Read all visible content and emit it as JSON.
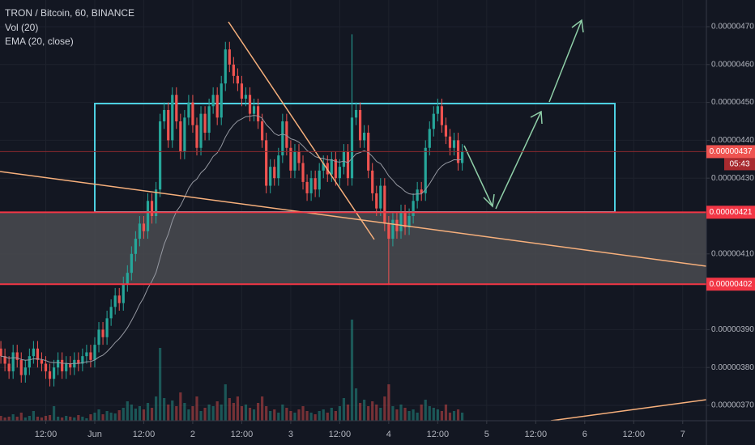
{
  "chart_data": {
    "type": "candlestick",
    "title": "TRON / Bitcoin, 60, BINANCE",
    "indicators": [
      "Vol (20)",
      "EMA (20, close)"
    ],
    "ema_period": 20,
    "up_color": "#26a69a",
    "down_color": "#ef5350",
    "ema_color": "#9598a1",
    "x": [
      1,
      2,
      3,
      4,
      5,
      6,
      7,
      8,
      9,
      10,
      11,
      12,
      13,
      14,
      15,
      16,
      17,
      18,
      19,
      20,
      21,
      22,
      23,
      24,
      25,
      26,
      27,
      28,
      29,
      30,
      31,
      32,
      33,
      34,
      35,
      36,
      37,
      38,
      39,
      40,
      41,
      42,
      43,
      44,
      45,
      46,
      47,
      48,
      49,
      50,
      51,
      52,
      53,
      54,
      55,
      56,
      57,
      58,
      59,
      60,
      61,
      62,
      63,
      64,
      65,
      66,
      67,
      68,
      69,
      70,
      71,
      72,
      73,
      74,
      75,
      76,
      77,
      78,
      79,
      80,
      81,
      82,
      83,
      84,
      85,
      86,
      87,
      88,
      89,
      90,
      91,
      92,
      93,
      94,
      95,
      96,
      97,
      98,
      99,
      100,
      101,
      102,
      103,
      104,
      105,
      106,
      107,
      108,
      109,
      110,
      111,
      112,
      113,
      114
    ],
    "open": [
      3.85e-07,
      3.83e-07,
      3.81e-07,
      3.79e-07,
      3.84e-07,
      3.82e-07,
      3.78e-07,
      3.8e-07,
      3.83e-07,
      3.85e-07,
      3.82e-07,
      3.81e-07,
      3.79e-07,
      3.77e-07,
      3.8e-07,
      3.82e-07,
      3.79e-07,
      3.81e-07,
      3.8e-07,
      3.82e-07,
      3.81e-07,
      3.83e-07,
      3.84e-07,
      3.82e-07,
      3.86e-07,
      3.9e-07,
      3.88e-07,
      3.93e-07,
      3.96e-07,
      3.99e-07,
      3.97e-07,
      4.02e-07,
      4.05e-07,
      4.1e-07,
      4.14e-07,
      4.18e-07,
      4.16e-07,
      4.24e-07,
      4.2e-07,
      4.27e-07,
      4.45e-07,
      4.48e-07,
      4.4e-07,
      4.52e-07,
      4.45e-07,
      4.37e-07,
      4.46e-07,
      4.5e-07,
      4.44e-07,
      4.38e-07,
      4.47e-07,
      4.42e-07,
      4.49e-07,
      4.52e-07,
      4.46e-07,
      4.55e-07,
      4.64e-07,
      4.6e-07,
      4.57e-07,
      4.55e-07,
      4.51e-07,
      4.52e-07,
      4.47e-07,
      4.49e-07,
      4.45e-07,
      4.4e-07,
      4.28e-07,
      4.33e-07,
      4.3e-07,
      4.36e-07,
      4.45e-07,
      4.38e-07,
      4.32e-07,
      4.37e-07,
      4.34e-07,
      4.29e-07,
      4.26e-07,
      4.3e-07,
      4.27e-07,
      4.32e-07,
      4.34e-07,
      4.31e-07,
      4.35e-07,
      4.3e-07,
      4.33e-07,
      4.37e-07,
      4.3e-07,
      4.46e-07,
      4.48e-07,
      4.4e-07,
      4.42e-07,
      4.32e-07,
      4.26e-07,
      4.22e-07,
      4.28e-07,
      4.18e-07,
      4.14e-07,
      4.19e-07,
      4.16e-07,
      4.21e-07,
      4.17e-07,
      4.2e-07,
      4.24e-07,
      4.27e-07,
      4.26e-07,
      4.38e-07,
      4.43e-07,
      4.47e-07,
      4.49e-07,
      4.44e-07,
      4.41e-07,
      4.38e-07,
      4.4e-07,
      4.34e-07
    ],
    "high": [
      3.87e-07,
      3.85e-07,
      3.83e-07,
      3.86e-07,
      3.86e-07,
      3.84e-07,
      3.82e-07,
      3.85e-07,
      3.87e-07,
      3.87e-07,
      3.84e-07,
      3.83e-07,
      3.81e-07,
      3.82e-07,
      3.84e-07,
      3.84e-07,
      3.83e-07,
      3.83e-07,
      3.84e-07,
      3.84e-07,
      3.85e-07,
      3.86e-07,
      3.86e-07,
      3.88e-07,
      3.92e-07,
      3.92e-07,
      3.95e-07,
      3.98e-07,
      4.01e-07,
      4.01e-07,
      4.04e-07,
      4.07e-07,
      4.12e-07,
      4.16e-07,
      4.2e-07,
      4.2e-07,
      4.26e-07,
      4.26e-07,
      4.29e-07,
      4.47e-07,
      4.5e-07,
      4.5e-07,
      4.54e-07,
      4.54e-07,
      4.47e-07,
      4.48e-07,
      4.52e-07,
      4.52e-07,
      4.46e-07,
      4.49e-07,
      4.49e-07,
      4.51e-07,
      4.54e-07,
      4.54e-07,
      4.57e-07,
      4.66e-07,
      4.66e-07,
      4.62e-07,
      4.59e-07,
      4.57e-07,
      4.54e-07,
      4.54e-07,
      4.51e-07,
      4.51e-07,
      4.47e-07,
      4.42e-07,
      4.35e-07,
      4.35e-07,
      4.38e-07,
      4.47e-07,
      4.47e-07,
      4.4e-07,
      4.39e-07,
      4.39e-07,
      4.36e-07,
      4.31e-07,
      4.32e-07,
      4.32e-07,
      4.34e-07,
      4.36e-07,
      4.36e-07,
      4.37e-07,
      4.37e-07,
      4.35e-07,
      4.39e-07,
      4.39e-07,
      4.68e-07,
      4.5e-07,
      4.5e-07,
      4.44e-07,
      4.44e-07,
      4.34e-07,
      4.28e-07,
      4.3e-07,
      4.3e-07,
      4.2e-07,
      4.21e-07,
      4.21e-07,
      4.23e-07,
      4.23e-07,
      4.22e-07,
      4.26e-07,
      4.29e-07,
      4.29e-07,
      4.4e-07,
      4.45e-07,
      4.49e-07,
      4.51e-07,
      4.51e-07,
      4.46e-07,
      4.43e-07,
      4.42e-07,
      4.42e-07,
      4.39e-07
    ],
    "low": [
      3.81e-07,
      3.79e-07,
      3.77e-07,
      3.77e-07,
      3.8e-07,
      3.76e-07,
      3.76e-07,
      3.78e-07,
      3.81e-07,
      3.8e-07,
      3.79e-07,
      3.77e-07,
      3.75e-07,
      3.75e-07,
      3.78e-07,
      3.77e-07,
      3.77e-07,
      3.78e-07,
      3.78e-07,
      3.79e-07,
      3.79e-07,
      3.81e-07,
      3.8e-07,
      3.8e-07,
      3.84e-07,
      3.86e-07,
      3.86e-07,
      3.91e-07,
      3.94e-07,
      3.95e-07,
      3.95e-07,
      4e-07,
      4.03e-07,
      4.08e-07,
      4.12e-07,
      4.14e-07,
      4.14e-07,
      4.18e-07,
      4.18e-07,
      4.25e-07,
      4.43e-07,
      4.38e-07,
      4.38e-07,
      4.43e-07,
      4.35e-07,
      4.35e-07,
      4.44e-07,
      4.42e-07,
      4.36e-07,
      4.36e-07,
      4.4e-07,
      4.4e-07,
      4.47e-07,
      4.44e-07,
      4.44e-07,
      4.53e-07,
      4.58e-07,
      4.55e-07,
      4.53e-07,
      4.49e-07,
      4.49e-07,
      4.45e-07,
      4.45e-07,
      4.43e-07,
      4.38e-07,
      4.26e-07,
      4.26e-07,
      4.28e-07,
      4.28e-07,
      4.34e-07,
      4.36e-07,
      4.3e-07,
      4.3e-07,
      4.32e-07,
      4.27e-07,
      4.24e-07,
      4.24e-07,
      4.25e-07,
      4.25e-07,
      4.3e-07,
      4.29e-07,
      4.29e-07,
      4.28e-07,
      4.28e-07,
      4.31e-07,
      4.28e-07,
      4.28e-07,
      4.44e-07,
      4.38e-07,
      4.38e-07,
      4.3e-07,
      4.24e-07,
      4.2e-07,
      4.2e-07,
      4.16e-07,
      4.02e-07,
      4.12e-07,
      4.14e-07,
      4.14e-07,
      4.15e-07,
      4.15e-07,
      4.18e-07,
      4.22e-07,
      4.24e-07,
      4.24e-07,
      4.36e-07,
      4.41e-07,
      4.45e-07,
      4.42e-07,
      4.39e-07,
      4.36e-07,
      4.36e-07,
      4.32e-07,
      4.32e-07
    ],
    "close": [
      3.83e-07,
      3.81e-07,
      3.79e-07,
      3.84e-07,
      3.82e-07,
      3.78e-07,
      3.8e-07,
      3.83e-07,
      3.85e-07,
      3.82e-07,
      3.81e-07,
      3.79e-07,
      3.77e-07,
      3.8e-07,
      3.82e-07,
      3.79e-07,
      3.81e-07,
      3.8e-07,
      3.82e-07,
      3.81e-07,
      3.83e-07,
      3.84e-07,
      3.82e-07,
      3.86e-07,
      3.9e-07,
      3.88e-07,
      3.93e-07,
      3.96e-07,
      3.99e-07,
      3.97e-07,
      4.02e-07,
      4.05e-07,
      4.1e-07,
      4.14e-07,
      4.18e-07,
      4.16e-07,
      4.24e-07,
      4.2e-07,
      4.27e-07,
      4.45e-07,
      4.48e-07,
      4.4e-07,
      4.52e-07,
      4.45e-07,
      4.37e-07,
      4.46e-07,
      4.5e-07,
      4.44e-07,
      4.38e-07,
      4.47e-07,
      4.42e-07,
      4.49e-07,
      4.52e-07,
      4.46e-07,
      4.55e-07,
      4.64e-07,
      4.6e-07,
      4.57e-07,
      4.55e-07,
      4.51e-07,
      4.52e-07,
      4.47e-07,
      4.49e-07,
      4.45e-07,
      4.4e-07,
      4.28e-07,
      4.33e-07,
      4.3e-07,
      4.36e-07,
      4.45e-07,
      4.38e-07,
      4.32e-07,
      4.37e-07,
      4.34e-07,
      4.29e-07,
      4.26e-07,
      4.3e-07,
      4.27e-07,
      4.32e-07,
      4.34e-07,
      4.31e-07,
      4.35e-07,
      4.3e-07,
      4.33e-07,
      4.37e-07,
      4.3e-07,
      4.46e-07,
      4.48e-07,
      4.4e-07,
      4.42e-07,
      4.32e-07,
      4.26e-07,
      4.22e-07,
      4.28e-07,
      4.18e-07,
      4.14e-07,
      4.19e-07,
      4.16e-07,
      4.21e-07,
      4.17e-07,
      4.2e-07,
      4.24e-07,
      4.27e-07,
      4.26e-07,
      4.38e-07,
      4.43e-07,
      4.47e-07,
      4.49e-07,
      4.44e-07,
      4.41e-07,
      4.38e-07,
      4.4e-07,
      4.34e-07,
      4.37e-07
    ],
    "volume": [
      6,
      4,
      5,
      8,
      5,
      10,
      4,
      6,
      12,
      5,
      4,
      6,
      7,
      18,
      5,
      4,
      6,
      5,
      4,
      7,
      5,
      3,
      8,
      10,
      14,
      8,
      12,
      10,
      9,
      13,
      16,
      24,
      20,
      15,
      18,
      14,
      22,
      16,
      30,
      90,
      28,
      20,
      25,
      18,
      35,
      22,
      14,
      18,
      30,
      12,
      16,
      20,
      18,
      24,
      20,
      45,
      28,
      22,
      30,
      18,
      20,
      16,
      14,
      22,
      30,
      18,
      12,
      14,
      10,
      20,
      16,
      12,
      10,
      14,
      18,
      12,
      10,
      8,
      12,
      14,
      10,
      16,
      12,
      18,
      28,
      20,
      125,
      40,
      22,
      26,
      18,
      24,
      20,
      16,
      30,
      45,
      18,
      14,
      20,
      16,
      12,
      14,
      10,
      20,
      26,
      18,
      16,
      14,
      12,
      20,
      10,
      12,
      14,
      10
    ],
    "xlim": [
      0.79,
      173.8
    ],
    "xticks": [
      {
        "value": 12,
        "label": "12:00"
      },
      {
        "value": 24,
        "label": "Jun"
      },
      {
        "value": 36,
        "label": "12:00"
      },
      {
        "value": 48,
        "label": "2"
      },
      {
        "value": 60,
        "label": "12:00"
      },
      {
        "value": 72,
        "label": "3"
      },
      {
        "value": 84,
        "label": "12:00"
      },
      {
        "value": 96,
        "label": "4"
      },
      {
        "value": 108,
        "label": "12:00"
      },
      {
        "value": 120,
        "label": "5"
      },
      {
        "value": 132,
        "label": "12:00"
      },
      {
        "value": 144,
        "label": "6"
      },
      {
        "value": 156,
        "label": "12:00"
      },
      {
        "value": 168,
        "label": "7"
      }
    ],
    "ylim": [
      3.6594e-07,
      4.7705e-07
    ],
    "yticks": [
      {
        "value": 4.7e-07,
        "label": "0.00000470"
      },
      {
        "value": 4.6e-07,
        "label": "0.00000460"
      },
      {
        "value": 4.5e-07,
        "label": "0.00000450"
      },
      {
        "value": 4.4e-07,
        "label": "0.00000440"
      },
      {
        "value": 4.3e-07,
        "label": "0.00000430"
      },
      {
        "value": 4.1e-07,
        "label": "0.00000410"
      },
      {
        "value": 3.9e-07,
        "label": "0.00000390"
      },
      {
        "value": 3.8e-07,
        "label": "0.00000380"
      },
      {
        "value": 3.7e-07,
        "label": "0.00000370"
      }
    ],
    "price_labels": [
      {
        "value": 4.37e-07,
        "label": "0.00000437",
        "countdown": "05:43"
      },
      {
        "value": 4.21e-07,
        "label": "0.00000421"
      },
      {
        "value": 4.02e-07,
        "label": "0.00000402"
      }
    ],
    "grid": true
  }
}
